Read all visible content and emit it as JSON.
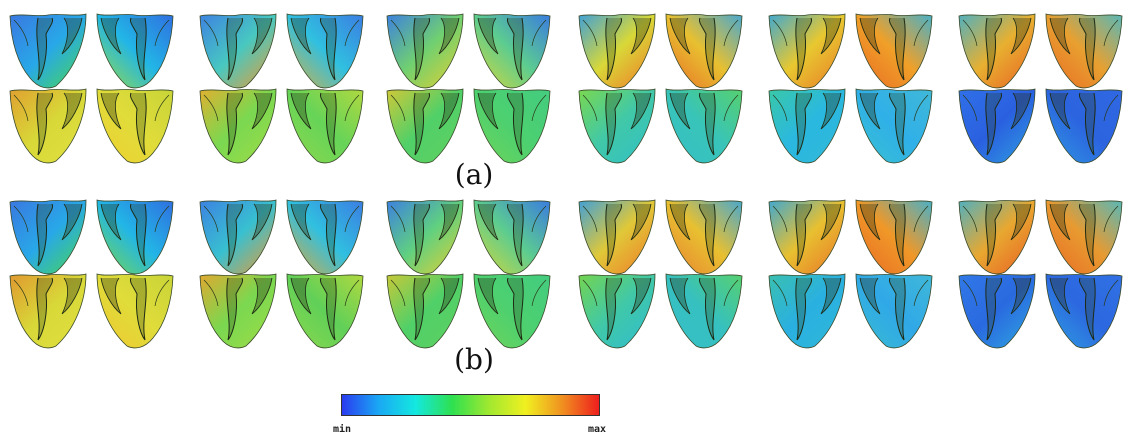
{
  "panels": [
    {
      "label": "(a)",
      "rows": [
        [
          [
            [
              "#3a78e0",
              "#28a8e8",
              "#4ad850"
            ],
            [
              "#2f6fe0",
              "#22b6e6",
              "#9adc40"
            ]
          ],
          [
            [
              "#3d82e2",
              "#48c8c0",
              "#f09a30"
            ],
            [
              "#3b7de2",
              "#30c0e0",
              "#d8b040"
            ]
          ],
          [
            [
              "#3c80e0",
              "#70d070",
              "#e8d030"
            ],
            [
              "#3a7ce0",
              "#5ccc90",
              "#d8d838"
            ]
          ],
          [
            [
              "#40a0d8",
              "#d8d838",
              "#f07828"
            ],
            [
              "#48a8d0",
              "#e8c030",
              "#e86e26"
            ]
          ],
          [
            [
              "#40a8d0",
              "#e8c830",
              "#e87a28"
            ],
            [
              "#48b0c8",
              "#f0a028",
              "#e86a24"
            ]
          ],
          [
            [
              "#50b0c0",
              "#e8b030",
              "#e86024"
            ],
            [
              "#58b8b8",
              "#e8a030",
              "#e86a24"
            ]
          ]
        ],
        [
          [
            [
              "#e0a030",
              "#d8d838",
              "#e0e040"
            ],
            [
              "#c8d438",
              "#e0dc3a",
              "#f0d030"
            ]
          ],
          [
            [
              "#e0b030",
              "#7ad850",
              "#a0dc48"
            ],
            [
              "#b0d840",
              "#66d458",
              "#8ed84c"
            ]
          ],
          [
            [
              "#d0c838",
              "#50d068",
              "#62d060"
            ],
            [
              "#44cc80",
              "#4cd070",
              "#70d458"
            ]
          ],
          [
            [
              "#7ad850",
              "#40c8a8",
              "#32c0c8"
            ],
            [
              "#56d070",
              "#38c4b8",
              "#36c0c8"
            ]
          ],
          [
            [
              "#3ac8a8",
              "#2ab8e0",
              "#30b8d8"
            ],
            [
              "#40b8d8",
              "#30b0e8",
              "#38c0d0"
            ]
          ],
          [
            [
              "#3070e8",
              "#2a60e0",
              "#2ea0e0"
            ],
            [
              "#3068e4",
              "#2c64e0",
              "#2e98e0"
            ]
          ]
        ]
      ]
    },
    {
      "label": "(b)",
      "rows": [
        [
          [
            [
              "#3a78e0",
              "#28a8e8",
              "#4ad850"
            ],
            [
              "#2f6fe0",
              "#22b6e6",
              "#7ad848"
            ]
          ],
          [
            [
              "#3d82e2",
              "#38c0d0",
              "#f09a30"
            ],
            [
              "#3b7de2",
              "#30c0e0",
              "#e0a838"
            ]
          ],
          [
            [
              "#3c80e0",
              "#60d080",
              "#e8d030"
            ],
            [
              "#3a7ce0",
              "#5ccc90",
              "#d8d838"
            ]
          ],
          [
            [
              "#40a0d8",
              "#e0c838",
              "#f07828"
            ],
            [
              "#48a8d0",
              "#e8c030",
              "#e88030"
            ]
          ],
          [
            [
              "#40a8d0",
              "#e8c030",
              "#e87228"
            ],
            [
              "#48b0c8",
              "#f09828",
              "#e86a24"
            ]
          ],
          [
            [
              "#50b0c0",
              "#e8a830",
              "#e85c24"
            ],
            [
              "#58b8b8",
              "#e89a30",
              "#e86a24"
            ]
          ]
        ],
        [
          [
            [
              "#e09830",
              "#d8d838",
              "#e0e040"
            ],
            [
              "#c8d438",
              "#e0dc3a",
              "#f0c830"
            ]
          ],
          [
            [
              "#e0a830",
              "#7ad850",
              "#a0dc48"
            ],
            [
              "#b0d840",
              "#60d058",
              "#8ed84c"
            ]
          ],
          [
            [
              "#c8c838",
              "#50d068",
              "#5ed060"
            ],
            [
              "#44cc80",
              "#4cd070",
              "#70d458"
            ]
          ],
          [
            [
              "#74d450",
              "#40c8a8",
              "#30bcd0"
            ],
            [
              "#56d070",
              "#36c0c0",
              "#36c0c8"
            ]
          ],
          [
            [
              "#3ac0b0",
              "#2ab0e0",
              "#30b8d8"
            ],
            [
              "#40b8d8",
              "#30a8e8",
              "#38bcd0"
            ]
          ],
          [
            [
              "#3078e8",
              "#2a6ae0",
              "#2ea8e0"
            ],
            [
              "#3070e4",
              "#2c68e0",
              "#2ea0e0"
            ]
          ]
        ]
      ]
    }
  ],
  "colorbar": {
    "min_label": "min",
    "max_label": "max",
    "stops": [
      "#2a3cf0",
      "#1aa8f4",
      "#14e8e0",
      "#2ee050",
      "#a0e830",
      "#f0f020",
      "#f09020",
      "#ee1e1e"
    ]
  }
}
